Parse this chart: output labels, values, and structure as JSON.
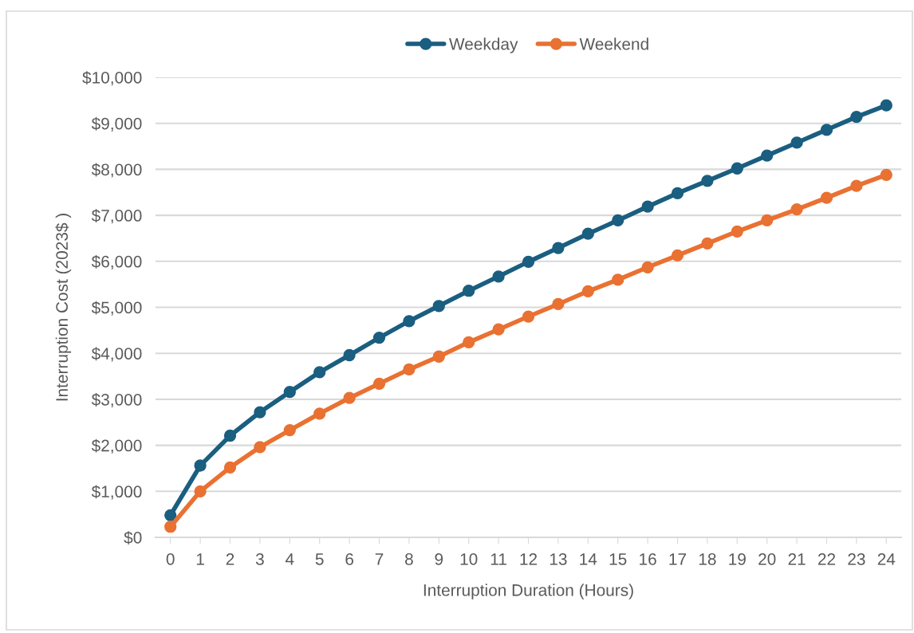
{
  "chart_data": {
    "type": "line",
    "xlabel": "Interruption Duration (Hours)",
    "ylabel": "Interruption Cost (2023$ )",
    "categories": [
      "0",
      "1",
      "2",
      "3",
      "4",
      "5",
      "6",
      "7",
      "8",
      "9",
      "10",
      "11",
      "12",
      "13",
      "14",
      "15",
      "16",
      "17",
      "18",
      "19",
      "20",
      "21",
      "22",
      "23",
      "24"
    ],
    "series": [
      {
        "name": "Weekday",
        "color": "#1a5e80",
        "values": [
          480,
          1560,
          2210,
          2720,
          3160,
          3590,
          3960,
          4340,
          4700,
          5030,
          5360,
          5670,
          5990,
          6290,
          6600,
          6890,
          7190,
          7480,
          7750,
          8020,
          8300,
          8580,
          8860,
          9140,
          9390
        ]
      },
      {
        "name": "Weekend",
        "color": "#e97132",
        "values": [
          230,
          1000,
          1520,
          1960,
          2330,
          2690,
          3030,
          3340,
          3650,
          3930,
          4240,
          4520,
          4800,
          5070,
          5350,
          5600,
          5870,
          6130,
          6390,
          6650,
          6890,
          7130,
          7380,
          7640,
          7880
        ]
      }
    ],
    "ylim": [
      0,
      10000
    ],
    "yticks": [
      {
        "value": 0,
        "label": "$0"
      },
      {
        "value": 1000,
        "label": "$1,000"
      },
      {
        "value": 2000,
        "label": "$2,000"
      },
      {
        "value": 3000,
        "label": "$3,000"
      },
      {
        "value": 4000,
        "label": "$4,000"
      },
      {
        "value": 5000,
        "label": "$5,000"
      },
      {
        "value": 6000,
        "label": "$6,000"
      },
      {
        "value": 7000,
        "label": "$7,000"
      },
      {
        "value": 8000,
        "label": "$8,000"
      },
      {
        "value": 9000,
        "label": "$9,000"
      },
      {
        "value": 10000,
        "label": "$10,000"
      }
    ],
    "grid": "y",
    "legend": "top",
    "marker": "circle",
    "line_style": "solid"
  }
}
